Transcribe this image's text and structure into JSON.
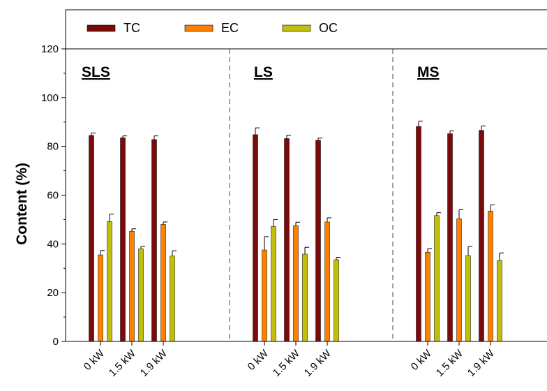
{
  "chart_data": {
    "type": "bar",
    "ylabel": "Content (%)",
    "xlabel": "",
    "ylim": [
      0,
      120
    ],
    "yticks": [
      0,
      20,
      40,
      60,
      80,
      100,
      120
    ],
    "y_minor_step": 10,
    "legend_position": "top",
    "panels": [
      {
        "label": "SLS",
        "categories": [
          "0 kW",
          "1.5 kW",
          "1.9 kW"
        ],
        "series": [
          {
            "name": "TC",
            "values": [
              84.5,
              83.5,
              82.8
            ],
            "errors": [
              1.0,
              0.8,
              1.5
            ]
          },
          {
            "name": "EC",
            "values": [
              35.5,
              45.2,
              48.0
            ],
            "errors": [
              1.8,
              1.0,
              1.0
            ]
          },
          {
            "name": "OC",
            "values": [
              49.2,
              38.0,
              35.0
            ],
            "errors": [
              3.0,
              1.0,
              2.2
            ]
          }
        ]
      },
      {
        "label": "LS",
        "categories": [
          "0 kW",
          "1.5 kW",
          "1.9 kW"
        ],
        "series": [
          {
            "name": "TC",
            "values": [
              84.8,
              83.2,
              82.5
            ],
            "errors": [
              2.8,
              1.4,
              0.9
            ]
          },
          {
            "name": "EC",
            "values": [
              37.5,
              47.5,
              49.0
            ],
            "errors": [
              5.5,
              1.4,
              1.7
            ]
          },
          {
            "name": "OC",
            "values": [
              47.2,
              35.8,
              33.5
            ],
            "errors": [
              2.8,
              2.8,
              1.0
            ]
          }
        ]
      },
      {
        "label": "MS",
        "categories": [
          "0 kW",
          "1.5 kW",
          "1.9 kW"
        ],
        "series": [
          {
            "name": "TC",
            "values": [
              88.2,
              85.2,
              86.6
            ],
            "errors": [
              2.2,
              1.2,
              1.8
            ]
          },
          {
            "name": "EC",
            "values": [
              36.6,
              50.3,
              53.5
            ],
            "errors": [
              1.5,
              3.7,
              2.5
            ]
          },
          {
            "name": "OC",
            "values": [
              51.6,
              35.2,
              33.2
            ],
            "errors": [
              1.2,
              3.7,
              3.1
            ]
          }
        ]
      }
    ],
    "colors": {
      "TC": "#7b0a0a",
      "EC": "#ff8000",
      "OC": "#c0c00c"
    },
    "legend": [
      {
        "name": "TC",
        "color": "#7b0a0a"
      },
      {
        "name": "EC",
        "color": "#ff8000"
      },
      {
        "name": "OC",
        "color": "#c0c00c"
      }
    ]
  }
}
